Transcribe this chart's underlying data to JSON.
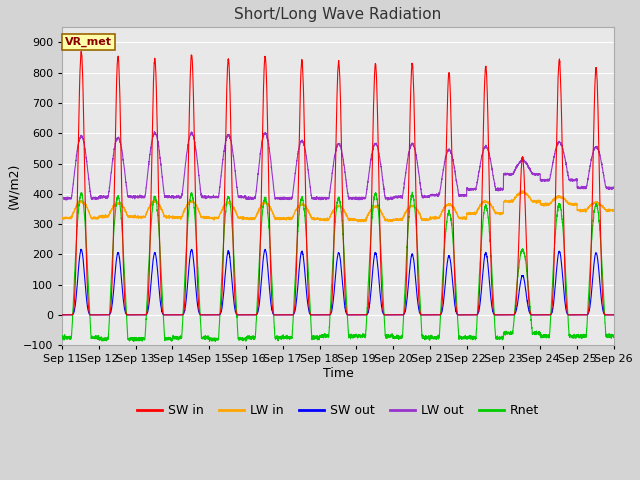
{
  "title": "Short/Long Wave Radiation",
  "xlabel": "Time",
  "ylabel": "(W/m2)",
  "ylim": [
    -100,
    950
  ],
  "station_label": "VR_met",
  "x_tick_labels": [
    "Sep 11",
    "Sep 12",
    "Sep 13",
    "Sep 14",
    "Sep 15",
    "Sep 16",
    "Sep 17",
    "Sep 18",
    "Sep 19",
    "Sep 20",
    "Sep 21",
    "Sep 22",
    "Sep 23",
    "Sep 24",
    "Sep 25",
    "Sep 26"
  ],
  "legend_entries": [
    {
      "label": "SW in",
      "color": "#ff0000"
    },
    {
      "label": "LW in",
      "color": "#ffa500"
    },
    {
      "label": "SW out",
      "color": "#0000ff"
    },
    {
      "label": "LW out",
      "color": "#9933cc"
    },
    {
      "label": "Rnet",
      "color": "#00cc00"
    }
  ],
  "SW_in_peaks": [
    870,
    855,
    845,
    860,
    845,
    855,
    840,
    835,
    830,
    830,
    800,
    820,
    520,
    845,
    815
  ],
  "SW_out_peaks": [
    215,
    205,
    205,
    215,
    210,
    215,
    210,
    205,
    205,
    200,
    195,
    205,
    130,
    210,
    205
  ],
  "LW_out_day": [
    590,
    585,
    600,
    600,
    595,
    600,
    575,
    565,
    565,
    565,
    545,
    555,
    510,
    570,
    555
  ],
  "LW_out_night": [
    385,
    390,
    390,
    390,
    390,
    385,
    385,
    385,
    385,
    390,
    395,
    415,
    465,
    445,
    420
  ],
  "LW_in_day": [
    375,
    370,
    375,
    375,
    370,
    370,
    365,
    360,
    358,
    360,
    365,
    375,
    405,
    390,
    370
  ],
  "LW_in_night": [
    320,
    325,
    323,
    322,
    320,
    318,
    318,
    315,
    312,
    315,
    320,
    335,
    375,
    365,
    345
  ],
  "Rnet_peaks": [
    400,
    390,
    390,
    400,
    390,
    385,
    385,
    385,
    400,
    395,
    340,
    360,
    215,
    365,
    365
  ],
  "Rnet_night": [
    -75,
    -80,
    -80,
    -75,
    -80,
    -75,
    -75,
    -70,
    -70,
    -75,
    -75,
    -75,
    -60,
    -70,
    -70
  ],
  "n_days": 15,
  "pts_per_day": 288,
  "background_color": "#e8e8e8",
  "plot_bg_color": "#d8d8d8",
  "grid_color": "#ffffff",
  "colors": {
    "SW_in": "#ff0000",
    "LW_in": "#ffa500",
    "SW_out": "#0000ff",
    "LW_out": "#9933cc",
    "Rnet": "#00cc00"
  },
  "fig_width": 6.4,
  "fig_height": 4.8,
  "dpi": 100
}
